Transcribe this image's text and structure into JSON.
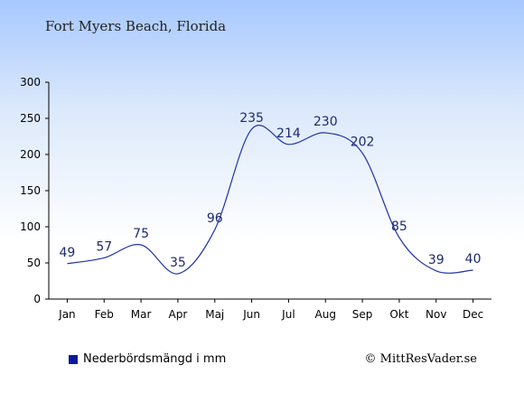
{
  "chart_data": {
    "type": "line",
    "title": "Fort Myers Beach, Florida",
    "categories": [
      "Jan",
      "Feb",
      "Mar",
      "Apr",
      "Maj",
      "Jun",
      "Jul",
      "Aug",
      "Sep",
      "Okt",
      "Nov",
      "Dec"
    ],
    "series": [
      {
        "name": "Nederbördsmängd i mm",
        "values": [
          49,
          57,
          75,
          35,
          96,
          235,
          214,
          230,
          202,
          85,
          39,
          40
        ],
        "color": "#2233aa"
      }
    ],
    "y_ticks": [
      0,
      50,
      100,
      150,
      200,
      250,
      300
    ],
    "ylim": [
      0,
      300
    ],
    "grid": false,
    "legend_position": "bottom-left"
  },
  "credit": "© MittResVader.se",
  "colors": {
    "line": "#2233aa",
    "legend_swatch": "#0a1a9e",
    "label": "#1d2a6e"
  }
}
